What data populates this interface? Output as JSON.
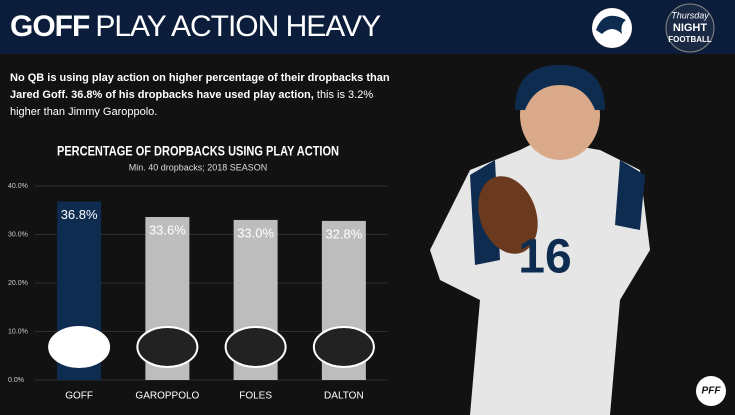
{
  "header": {
    "name": "GOFF",
    "title": "PLAY ACTION HEAVY"
  },
  "description": {
    "bold": "No QB is using play action on higher percentage of their dropbacks than Jared Goff. 36.8% of his dropbacks have used play action,",
    "regular": " this is 3.2% higher than Jimmy Garoppolo."
  },
  "logos": {
    "tnf": [
      "Thursday",
      "NIGHT",
      "FOOTBALL"
    ],
    "pff": "PFF"
  },
  "chart_data": {
    "type": "bar",
    "title": "PERCENTAGE OF DROPBACKS USING PLAY ACTION",
    "subtitle": "Min. 40 dropbacks; 2018 SEASON",
    "categories": [
      "GOFF",
      "GAROPPOLO",
      "FOLES",
      "DALTON"
    ],
    "values": [
      36.8,
      33.6,
      33.0,
      32.8
    ],
    "value_labels": [
      "36.8%",
      "33.6%",
      "33.0%",
      "32.8%"
    ],
    "colors": [
      "#0e2c50",
      "#bdbdbd",
      "#bdbdbd",
      "#bdbdbd"
    ],
    "ylim": [
      0,
      40
    ],
    "yticks": [
      {
        "value": 0,
        "label": "0.0%"
      },
      {
        "value": 10,
        "label": "10.0%"
      },
      {
        "value": 20,
        "label": "20.0%"
      },
      {
        "value": 30,
        "label": "30.0%"
      },
      {
        "value": 40,
        "label": "40.0%"
      }
    ],
    "grid": true
  }
}
